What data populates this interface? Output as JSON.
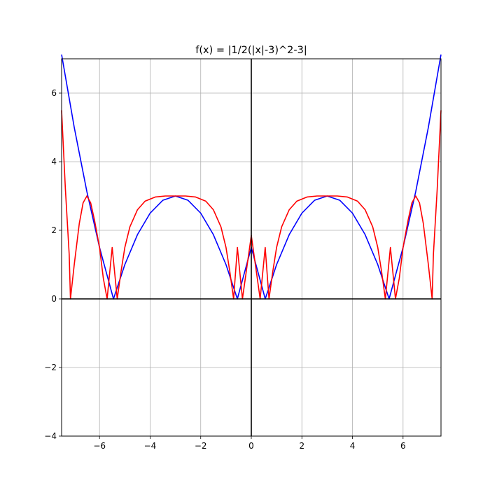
{
  "chart_data": {
    "type": "line",
    "title": "f(x) = |1/2(|x|-3)^2-3|",
    "xlabel": "",
    "ylabel": "",
    "xlim": [
      -7.5,
      7.5
    ],
    "ylim": [
      -4,
      7
    ],
    "grid": true,
    "x_ticks": [
      -6,
      -4,
      -2,
      0,
      2,
      4,
      6
    ],
    "y_ticks": [
      -4,
      -2,
      0,
      2,
      4,
      6
    ],
    "x_tick_labels": [
      "−6",
      "−4",
      "−2",
      "0",
      "2",
      "4",
      "6"
    ],
    "y_tick_labels": [
      "−4",
      "−2",
      "0",
      "2",
      "4",
      "6"
    ],
    "axes_lines": {
      "x_axis_at": 0,
      "y_axis_at": 0,
      "color": "#000000"
    },
    "series": [
      {
        "color": "#0000ff",
        "points": [
          [
            -7.5,
            7.125
          ],
          [
            -7.0,
            5.0
          ],
          [
            -6.5,
            3.125
          ],
          [
            -6.0,
            1.5
          ],
          [
            -5.449,
            0.0
          ],
          [
            -5.0,
            1.0
          ],
          [
            -4.5,
            1.875
          ],
          [
            -4.0,
            2.5
          ],
          [
            -3.5,
            2.875
          ],
          [
            -3.0,
            3.0
          ],
          [
            -2.5,
            2.875
          ],
          [
            -2.0,
            2.5
          ],
          [
            -1.5,
            1.875
          ],
          [
            -1.0,
            1.0
          ],
          [
            -0.551,
            0.0
          ],
          [
            0.0,
            1.5
          ],
          [
            0.551,
            0.0
          ],
          [
            1.0,
            1.0
          ],
          [
            1.5,
            1.875
          ],
          [
            2.0,
            2.5
          ],
          [
            2.5,
            2.875
          ],
          [
            3.0,
            3.0
          ],
          [
            3.5,
            2.875
          ],
          [
            4.0,
            2.5
          ],
          [
            4.5,
            1.875
          ],
          [
            5.0,
            1.0
          ],
          [
            5.449,
            0.0
          ],
          [
            6.0,
            1.5
          ],
          [
            6.5,
            3.125
          ],
          [
            7.0,
            5.0
          ],
          [
            7.5,
            7.125
          ]
        ]
      },
      {
        "color": "#ff0000",
        "points": [
          [
            -7.5,
            5.5
          ],
          [
            -7.35,
            3.2
          ],
          [
            -7.2,
            1.3
          ],
          [
            -7.15,
            0.0
          ],
          [
            -7.0,
            1.0
          ],
          [
            -6.8,
            2.2
          ],
          [
            -6.65,
            2.8
          ],
          [
            -6.5,
            3.0
          ],
          [
            -6.35,
            2.8
          ],
          [
            -6.2,
            2.3
          ],
          [
            -6.0,
            1.5
          ],
          [
            -5.85,
            0.6
          ],
          [
            -5.7,
            0.0
          ],
          [
            -5.5,
            1.5
          ],
          [
            -5.3,
            0.0
          ],
          [
            -5.15,
            0.8
          ],
          [
            -5.0,
            1.5
          ],
          [
            -4.8,
            2.1
          ],
          [
            -4.5,
            2.6
          ],
          [
            -4.2,
            2.85
          ],
          [
            -3.8,
            2.97
          ],
          [
            -3.4,
            3.0
          ],
          [
            -3.0,
            3.0
          ],
          [
            -2.6,
            3.0
          ],
          [
            -2.2,
            2.97
          ],
          [
            -1.8,
            2.85
          ],
          [
            -1.5,
            2.6
          ],
          [
            -1.2,
            2.1
          ],
          [
            -1.0,
            1.5
          ],
          [
            -0.85,
            0.8
          ],
          [
            -0.7,
            0.0
          ],
          [
            -0.55,
            1.5
          ],
          [
            -0.35,
            0.0
          ],
          [
            0.0,
            1.85
          ],
          [
            0.35,
            0.0
          ],
          [
            0.55,
            1.5
          ],
          [
            0.7,
            0.0
          ],
          [
            0.85,
            0.8
          ],
          [
            1.0,
            1.5
          ],
          [
            1.2,
            2.1
          ],
          [
            1.5,
            2.6
          ],
          [
            1.8,
            2.85
          ],
          [
            2.2,
            2.97
          ],
          [
            2.6,
            3.0
          ],
          [
            3.0,
            3.0
          ],
          [
            3.4,
            3.0
          ],
          [
            3.8,
            2.97
          ],
          [
            4.2,
            2.85
          ],
          [
            4.5,
            2.6
          ],
          [
            4.8,
            2.1
          ],
          [
            5.0,
            1.5
          ],
          [
            5.15,
            0.8
          ],
          [
            5.3,
            0.0
          ],
          [
            5.5,
            1.5
          ],
          [
            5.7,
            0.0
          ],
          [
            5.85,
            0.6
          ],
          [
            6.0,
            1.5
          ],
          [
            6.2,
            2.3
          ],
          [
            6.35,
            2.8
          ],
          [
            6.5,
            3.0
          ],
          [
            6.65,
            2.8
          ],
          [
            6.8,
            2.2
          ],
          [
            7.0,
            1.0
          ],
          [
            7.15,
            0.0
          ],
          [
            7.2,
            1.3
          ],
          [
            7.35,
            3.2
          ],
          [
            7.5,
            5.5
          ]
        ]
      }
    ]
  }
}
